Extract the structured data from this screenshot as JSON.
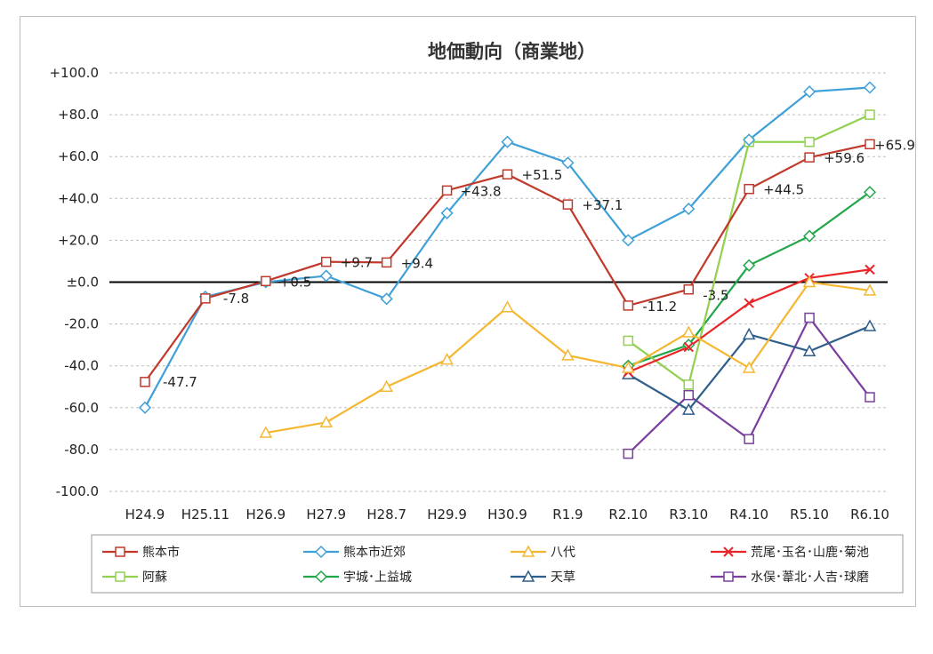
{
  "chart_data": {
    "type": "line",
    "title": "地価動向（商業地）",
    "xlabel": "",
    "ylabel": "",
    "categories": [
      "H24.9",
      "H25.11",
      "H26.9",
      "H27.9",
      "H28.7",
      "H29.9",
      "H30.9",
      "R1.9",
      "R2.10",
      "R3.10",
      "R4.10",
      "R5.10",
      "R6.10"
    ],
    "ylim": [
      -100,
      100
    ],
    "yticks": [
      "+100.0",
      "+80.0",
      "+60.0",
      "+40.0",
      "+20.0",
      "±0.0",
      "-20.0",
      "-40.0",
      "-60.0",
      "-80.0",
      "-100.0"
    ],
    "grid": "horizontal dashed",
    "legend_position": "bottom",
    "series": [
      {
        "name": "熊本市",
        "color": "#c0392b",
        "marker": "square",
        "values": [
          -47.7,
          -7.8,
          0.5,
          9.7,
          9.4,
          43.8,
          51.5,
          37.1,
          -11.2,
          -3.5,
          44.5,
          59.6,
          65.9
        ],
        "labels": [
          "-47.7",
          "-7.8",
          "+0.5",
          "+9.7",
          "+9.4",
          "+43.8",
          "+51.5",
          "+37.1",
          "-11.2",
          "-3.5",
          "+44.5",
          "+59.6",
          "+65.9"
        ]
      },
      {
        "name": "熊本市近郊",
        "color": "#3fa0d8",
        "marker": "diamond",
        "values": [
          -60,
          -7,
          0,
          3,
          -8,
          33,
          67,
          57,
          20,
          35,
          68,
          91,
          93
        ]
      },
      {
        "name": "八代",
        "color": "#f5b731",
        "marker": "triangle",
        "values": [
          null,
          null,
          -72,
          -67,
          -50,
          -37,
          -12,
          -35,
          -41,
          -24,
          -41,
          0,
          -4
        ]
      },
      {
        "name": "荒尾･玉名･山鹿･菊池",
        "color": "#e8262a",
        "marker": "x",
        "values": [
          null,
          null,
          null,
          null,
          null,
          null,
          null,
          null,
          -43,
          -31,
          -10,
          2,
          6
        ]
      },
      {
        "name": "阿蘇",
        "color": "#92d050",
        "marker": "square",
        "values": [
          null,
          null,
          null,
          null,
          null,
          null,
          null,
          null,
          -28,
          -49,
          67,
          67,
          80
        ]
      },
      {
        "name": "宇城･上益城",
        "color": "#22a64a",
        "marker": "diamond",
        "values": [
          null,
          null,
          null,
          null,
          null,
          null,
          null,
          null,
          -40,
          -30,
          8,
          22,
          43
        ]
      },
      {
        "name": "天草",
        "color": "#2e5e8c",
        "marker": "triangle",
        "values": [
          null,
          null,
          null,
          null,
          null,
          null,
          null,
          null,
          -44,
          -61,
          -25,
          -33,
          -21
        ]
      },
      {
        "name": "水俣･葦北･人吉･球磨",
        "color": "#7a3e9d",
        "marker": "square",
        "values": [
          null,
          null,
          null,
          null,
          null,
          null,
          null,
          null,
          -82,
          -54,
          -75,
          -17,
          -55
        ]
      }
    ]
  }
}
